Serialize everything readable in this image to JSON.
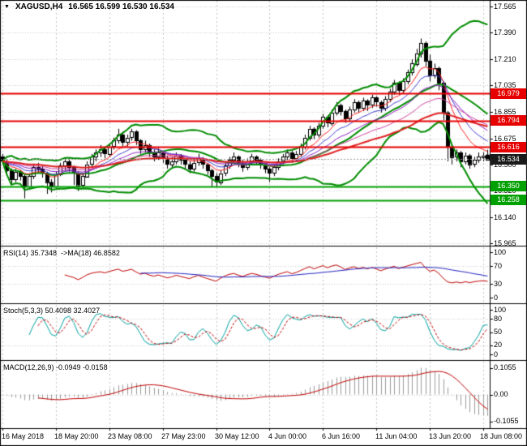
{
  "title": {
    "marker": "▼",
    "symbol": "XAGUSD,H4",
    "ohlc": "16.565 16.599 16.530 16.534"
  },
  "chart_data": {
    "type": "candlestick",
    "symbol": "XAGUSD",
    "timeframe": "H4",
    "ylim": [
      15.95,
      17.61
    ],
    "yticks": [
      17.565,
      17.39,
      17.21,
      17.035,
      16.855,
      16.675,
      16.5,
      16.32,
      16.14,
      15.965
    ],
    "ytick_labels": [
      "17.565",
      "17.390",
      "17.210",
      "17.035",
      "16.855",
      "16.675",
      "16.500",
      "16.320",
      "16.140",
      "15.965"
    ],
    "x_labels": [
      "16 May 2018",
      "18 May 20:00",
      "23 May 08:00",
      "27 May 23:00",
      "30 May 12:00",
      "4 Jun 00:00",
      "6 Jun 16:00",
      "11 Jun 04:00",
      "13 Jun 20:00",
      "18 Jun 08:00"
    ],
    "candles": [
      [
        16.55,
        16.57,
        16.5,
        16.52
      ],
      [
        16.52,
        16.53,
        16.43,
        16.46
      ],
      [
        16.46,
        16.47,
        16.37,
        16.4
      ],
      [
        16.4,
        16.47,
        16.38,
        16.45
      ],
      [
        16.45,
        16.46,
        16.39,
        16.42
      ],
      [
        16.42,
        16.43,
        16.27,
        16.35
      ],
      [
        16.35,
        16.44,
        16.33,
        16.42
      ],
      [
        16.42,
        16.5,
        16.4,
        16.48
      ],
      [
        16.48,
        16.51,
        16.44,
        16.47
      ],
      [
        16.47,
        16.49,
        16.41,
        16.44
      ],
      [
        16.44,
        16.45,
        16.3,
        16.38
      ],
      [
        16.38,
        16.4,
        16.31,
        16.35
      ],
      [
        16.35,
        16.45,
        16.34,
        16.43
      ],
      [
        16.43,
        16.51,
        16.42,
        16.49
      ],
      [
        16.49,
        16.54,
        16.46,
        16.52
      ],
      [
        16.52,
        16.54,
        16.45,
        16.48
      ],
      [
        16.48,
        16.49,
        16.36,
        16.44
      ],
      [
        16.44,
        16.45,
        16.32,
        16.36
      ],
      [
        16.36,
        16.44,
        16.34,
        16.42
      ],
      [
        16.42,
        16.52,
        16.41,
        16.5
      ],
      [
        16.5,
        16.57,
        16.48,
        16.55
      ],
      [
        16.55,
        16.6,
        16.52,
        16.58
      ],
      [
        16.58,
        16.63,
        16.55,
        16.6
      ],
      [
        16.6,
        16.62,
        16.54,
        16.57
      ],
      [
        16.57,
        16.64,
        16.55,
        16.62
      ],
      [
        16.62,
        16.68,
        16.6,
        16.66
      ],
      [
        16.66,
        16.74,
        16.64,
        16.7
      ],
      [
        16.7,
        16.72,
        16.62,
        16.65
      ],
      [
        16.65,
        16.7,
        16.62,
        16.68
      ],
      [
        16.68,
        16.74,
        16.66,
        16.72
      ],
      [
        16.72,
        16.73,
        16.63,
        16.66
      ],
      [
        16.66,
        16.67,
        16.57,
        16.6
      ],
      [
        16.6,
        16.66,
        16.58,
        16.63
      ],
      [
        16.63,
        16.64,
        16.55,
        16.58
      ],
      [
        16.58,
        16.6,
        16.52,
        16.55
      ],
      [
        16.55,
        16.61,
        16.53,
        16.58
      ],
      [
        16.58,
        16.59,
        16.51,
        16.54
      ],
      [
        16.54,
        16.56,
        16.47,
        16.5
      ],
      [
        16.5,
        16.55,
        16.48,
        16.52
      ],
      [
        16.52,
        16.58,
        16.5,
        16.56
      ],
      [
        16.56,
        16.57,
        16.5,
        16.53
      ],
      [
        16.53,
        16.54,
        16.47,
        16.5
      ],
      [
        16.5,
        16.52,
        16.44,
        16.47
      ],
      [
        16.47,
        16.53,
        16.45,
        16.51
      ],
      [
        16.51,
        16.57,
        16.49,
        16.54
      ],
      [
        16.54,
        16.55,
        16.47,
        16.5
      ],
      [
        16.5,
        16.51,
        16.43,
        16.46
      ],
      [
        16.46,
        16.47,
        16.35,
        16.42
      ],
      [
        16.42,
        16.44,
        16.35,
        16.38
      ],
      [
        16.38,
        16.46,
        16.36,
        16.44
      ],
      [
        16.44,
        16.51,
        16.42,
        16.49
      ],
      [
        16.49,
        16.55,
        16.47,
        16.53
      ],
      [
        16.53,
        16.58,
        16.51,
        16.55
      ],
      [
        16.55,
        16.56,
        16.48,
        16.51
      ],
      [
        16.51,
        16.53,
        16.45,
        16.48
      ],
      [
        16.48,
        16.54,
        16.46,
        16.52
      ],
      [
        16.52,
        16.57,
        16.5,
        16.55
      ],
      [
        16.55,
        16.56,
        16.5,
        16.53
      ],
      [
        16.53,
        16.54,
        16.47,
        16.5
      ],
      [
        16.5,
        16.51,
        16.44,
        16.47
      ],
      [
        16.47,
        16.48,
        16.38,
        16.44
      ],
      [
        16.44,
        16.5,
        16.42,
        16.48
      ],
      [
        16.48,
        16.54,
        16.46,
        16.52
      ],
      [
        16.52,
        16.57,
        16.5,
        16.55
      ],
      [
        16.55,
        16.6,
        16.53,
        16.58
      ],
      [
        16.58,
        16.59,
        16.51,
        16.54
      ],
      [
        16.54,
        16.59,
        16.52,
        16.57
      ],
      [
        16.57,
        16.64,
        16.55,
        16.62
      ],
      [
        16.62,
        16.7,
        16.6,
        16.68
      ],
      [
        16.68,
        16.76,
        16.66,
        16.74
      ],
      [
        16.74,
        16.75,
        16.67,
        16.7
      ],
      [
        16.7,
        16.78,
        16.68,
        16.76
      ],
      [
        16.76,
        16.84,
        16.74,
        16.82
      ],
      [
        16.82,
        16.83,
        16.75,
        16.78
      ],
      [
        16.78,
        16.87,
        16.76,
        16.85
      ],
      [
        16.85,
        16.92,
        16.83,
        16.9
      ],
      [
        16.9,
        16.91,
        16.83,
        16.86
      ],
      [
        16.86,
        16.87,
        16.78,
        16.81
      ],
      [
        16.81,
        16.89,
        16.79,
        16.87
      ],
      [
        16.87,
        16.94,
        16.85,
        16.92
      ],
      [
        16.92,
        16.93,
        16.85,
        16.88
      ],
      [
        16.88,
        16.95,
        16.86,
        16.93
      ],
      [
        16.93,
        16.94,
        16.86,
        16.9
      ],
      [
        16.9,
        16.97,
        16.88,
        16.95
      ],
      [
        16.95,
        16.96,
        16.89,
        16.92
      ],
      [
        16.92,
        16.93,
        16.85,
        16.88
      ],
      [
        16.88,
        16.96,
        16.86,
        16.94
      ],
      [
        16.94,
        17.01,
        16.92,
        16.99
      ],
      [
        16.99,
        17.07,
        16.97,
        17.05
      ],
      [
        17.05,
        17.06,
        16.97,
        17.0
      ],
      [
        17.0,
        17.08,
        16.98,
        17.06
      ],
      [
        17.06,
        17.14,
        17.04,
        17.12
      ],
      [
        17.12,
        17.21,
        17.1,
        17.18
      ],
      [
        17.18,
        17.28,
        17.16,
        17.25
      ],
      [
        17.25,
        17.35,
        17.22,
        17.32
      ],
      [
        17.32,
        17.33,
        17.16,
        17.2
      ],
      [
        17.2,
        17.24,
        17.06,
        17.1
      ],
      [
        17.1,
        17.18,
        17.08,
        17.15
      ],
      [
        17.15,
        17.16,
        17.0,
        17.05
      ],
      [
        17.05,
        17.06,
        16.8,
        16.85
      ],
      [
        16.85,
        16.86,
        16.52,
        16.62
      ],
      [
        16.62,
        16.64,
        16.5,
        16.55
      ],
      [
        16.55,
        16.6,
        16.52,
        16.58
      ],
      [
        16.58,
        16.59,
        16.48,
        16.52
      ],
      [
        16.52,
        16.58,
        16.5,
        16.56
      ],
      [
        16.56,
        16.57,
        16.47,
        16.5
      ],
      [
        16.5,
        16.55,
        16.48,
        16.53
      ],
      [
        16.53,
        16.58,
        16.51,
        16.55
      ],
      [
        16.55,
        16.58,
        16.52,
        16.56
      ],
      [
        16.565,
        16.599,
        16.53,
        16.534
      ]
    ],
    "hlines": [
      {
        "price": 16.979,
        "label": "16.979",
        "color": "#e60000",
        "box": "#e60000",
        "style": "solid"
      },
      {
        "price": 16.794,
        "label": "16.794",
        "color": "#e60000",
        "box": "#e60000",
        "style": "solid"
      },
      {
        "price": 16.616,
        "label": "16.616",
        "color": "#e60000",
        "box": "#e60000",
        "style": "solid"
      },
      {
        "price": 16.534,
        "label": "16.534",
        "color": "#999999",
        "box": "#1a1a1a",
        "style": "dotted"
      },
      {
        "price": 16.35,
        "label": "16.350",
        "color": "#00a000",
        "box": "#00a000",
        "style": "solid"
      },
      {
        "price": 16.258,
        "label": "16.258",
        "color": "#00a000",
        "box": "#00a000",
        "style": "solid"
      }
    ],
    "overlays": {
      "bollinger": {
        "period": 20,
        "deviation": 2,
        "color": "#008c00",
        "width": 2
      },
      "mas": [
        {
          "type": "ema",
          "period": 8,
          "color": "#ff2020",
          "width": 1
        },
        {
          "type": "ema",
          "period": 13,
          "color": "#4040d0",
          "width": 1
        },
        {
          "type": "ema",
          "period": 21,
          "color": "#9020c0",
          "width": 1
        },
        {
          "type": "ema",
          "period": 34,
          "color": "#d040a0",
          "width": 1
        },
        {
          "type": "ema",
          "period": 55,
          "color": "#e02020",
          "width": 2
        }
      ]
    },
    "indicators": [
      {
        "id": "rsi",
        "label": "RSI(14) 35.7348  ->MA(18) 46.8582",
        "params": {
          "period": 14,
          "ma_period": 18
        },
        "last": 35.7348,
        "ma_last": 46.8582,
        "ylim": [
          0,
          100
        ],
        "levels": [
          70,
          30
        ],
        "ticks": [
          "100",
          "70",
          "30",
          "0"
        ],
        "colors": {
          "main": "#c00000",
          "ma": "#2020c0"
        }
      },
      {
        "id": "stochastic",
        "label": "Stoch(5,3,3) 50.4098 32.4027",
        "params": {
          "k": 5,
          "d": 3,
          "slowing": 3
        },
        "last": 50.4098,
        "signal_last": 32.4027,
        "ylim": [
          0,
          100
        ],
        "levels": [
          80,
          20
        ],
        "ticks": [
          "100",
          "80",
          "50",
          "20",
          "0"
        ],
        "colors": {
          "main": "#00a0a0",
          "signal": "#c00000"
        }
      },
      {
        "id": "macd",
        "label": "MACD(12,26,9) -0.0949 -0.0158",
        "params": {
          "fast": 12,
          "slow": 26,
          "signal": 9
        },
        "last": -0.0949,
        "signal_last": -0.0158,
        "ylim": [
          -0.1055,
          0.1055
        ],
        "ticks": [
          "0.1055",
          "0.00",
          "-0.1055"
        ],
        "colors": {
          "hist": "#9a9a9a",
          "signal": "#c00000"
        }
      }
    ]
  }
}
